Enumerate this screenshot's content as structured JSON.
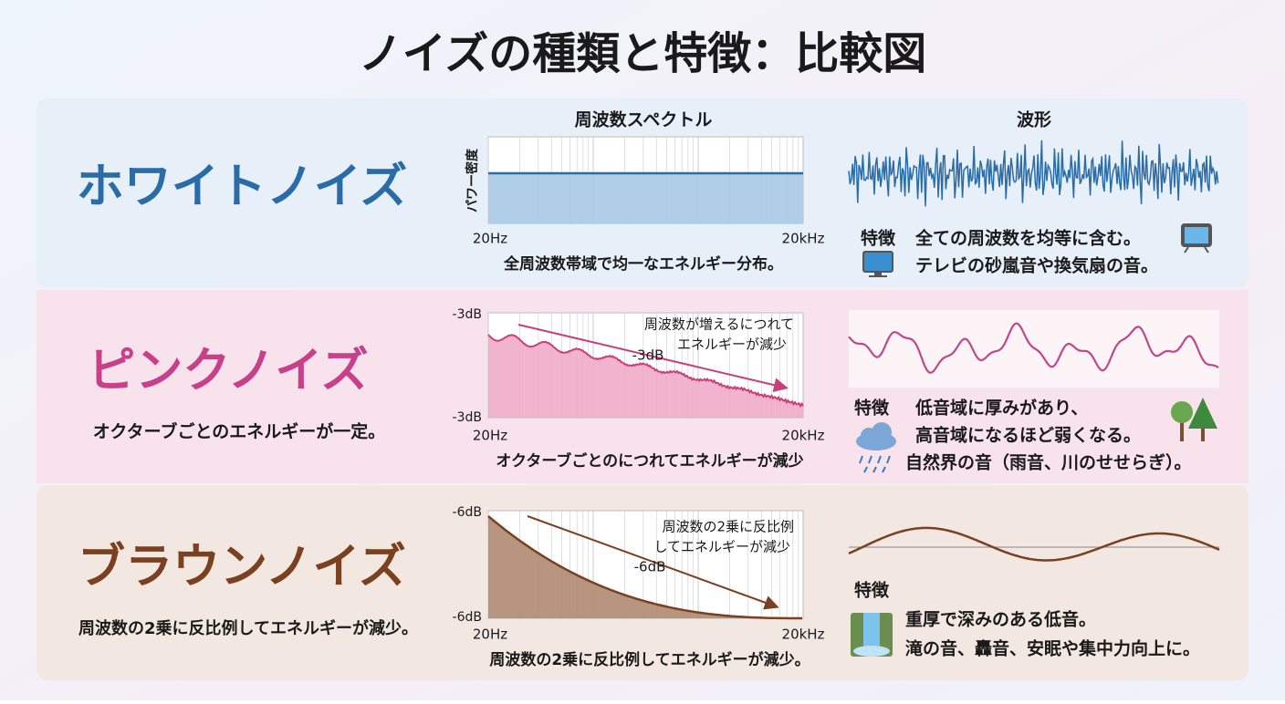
{
  "title": "ノイズの種類と特徴：比較図",
  "headers": {
    "spectrum": "周波数スペクトル",
    "waveform": "波形"
  },
  "rows": [
    {
      "name": "ホワイトノイズ",
      "y_axis_label": "パワー密度",
      "x_start": "20Hz",
      "x_end": "20kHz",
      "caption": "全周波数帯域で均一なエネルギー分布。",
      "feature_label": "特徴",
      "feature_lines": [
        "全ての周波数を均等に含む。",
        "テレビの砂嵐音や換気扇の音。"
      ]
    },
    {
      "name": "ピンクノイズ",
      "subtitle": "オクターブごとのエネルギーが一定。",
      "y_top": "-3dB",
      "y_bottom": "-3dB",
      "annotation": [
        "周波数が増えるにつれて",
        "エネルギーが減少",
        "-3dB"
      ],
      "x_start": "20Hz",
      "x_end": "20kHz",
      "caption": "オクターブごとのにつれてエネルギーが減少",
      "feature_label": "特徴",
      "feature_lines": [
        "低音域に厚みがあり、",
        "高音域になるほど弱くなる。",
        "自然界の音（雨音、川のせせらぎ）。"
      ]
    },
    {
      "name": "ブラウンノイズ",
      "subtitle": "周波数の2乗に反比例してエネルギーが減少。",
      "y_top": "-6dB",
      "y_bottom": "-6dB",
      "annotation": [
        "周波数の2乗に反比例",
        "してエネルギーが減少",
        "-6dB"
      ],
      "x_start": "20Hz",
      "x_end": "20kHz",
      "caption": "周波数の2乗に反比例してエネルギーが減少。",
      "feature_label": "特徴",
      "feature_lines": [
        "重厚で深みのある低音。",
        "滝の音、轟音、安眠や集中力向上に。"
      ]
    }
  ]
}
